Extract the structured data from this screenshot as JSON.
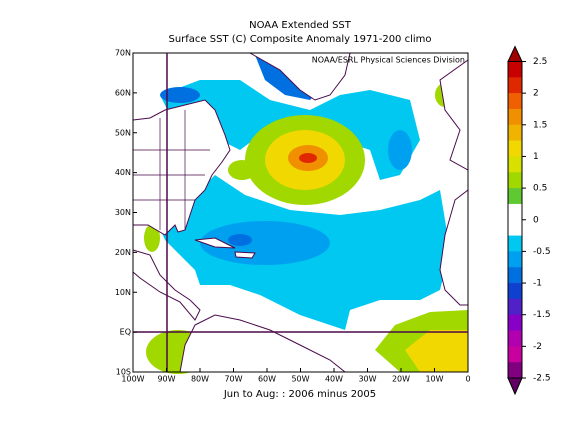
{
  "header": {
    "title": "NOAA Extended SST",
    "subtitle": "Surface SST (C) Composite Anomaly 1971-200 climo"
  },
  "credit": "NOAA/ESRL Physical Sciences Division",
  "caption": "Jun to Aug: : 2006 minus 2005",
  "map": {
    "lat_labels": [
      "70N",
      "60N",
      "50N",
      "40N",
      "30N",
      "20N",
      "10N",
      "EQ",
      "10S"
    ],
    "lon_labels": [
      "100W",
      "90W",
      "80W",
      "70W",
      "60W",
      "50W",
      "40W",
      "30W",
      "20W",
      "10W",
      "0"
    ]
  },
  "colorbar": {
    "ticks": [
      2.5,
      2,
      1.5,
      1,
      0.5,
      0,
      -0.5,
      -1,
      -1.5,
      -2,
      -2.5
    ],
    "colors": [
      "#c80000",
      "#e02800",
      "#f06000",
      "#f09000",
      "#f0b400",
      "#f0d800",
      "#d8e000",
      "#a0d800",
      "#60c830",
      "#ffffff",
      "#ffffff",
      "#00c8f0",
      "#00a0f0",
      "#0070e0",
      "#1040d0",
      "#5020c8",
      "#8800c8",
      "#b000b0",
      "#c800a0",
      "#800080"
    ],
    "over_color": "#a00000",
    "under_color": "#600060"
  }
}
